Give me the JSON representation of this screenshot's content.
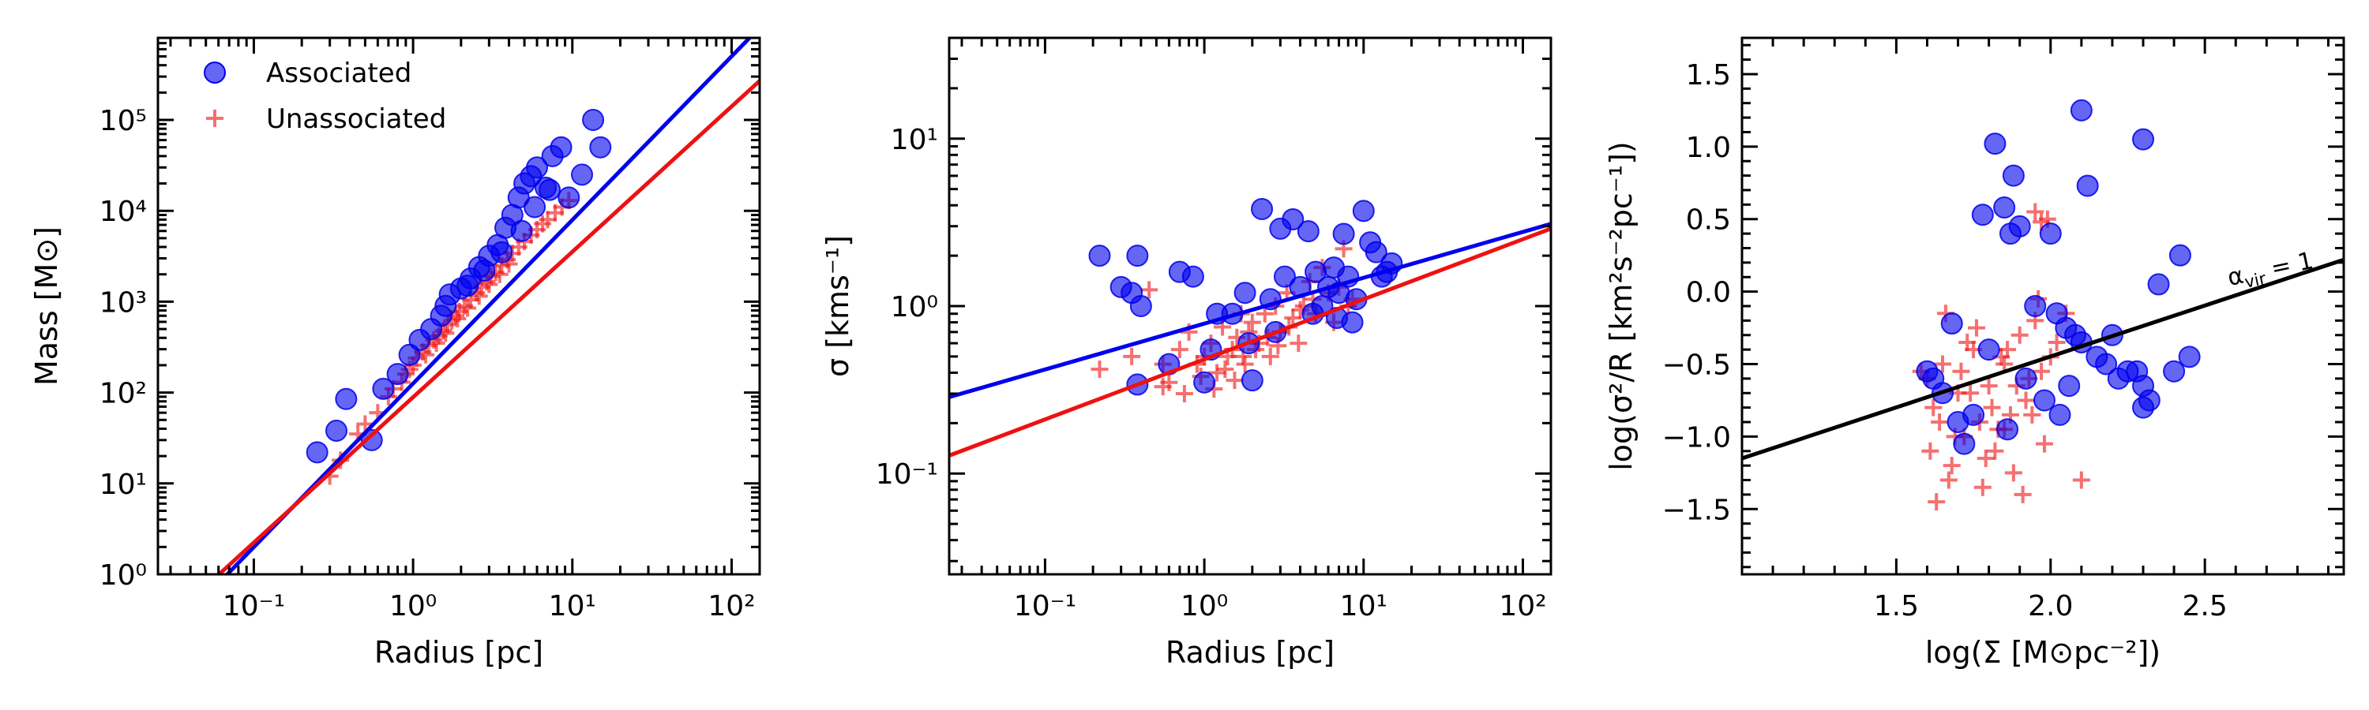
{
  "colors": {
    "associated": "#0000ee",
    "unassociated": "#ee1111",
    "fit_black": "#000000"
  },
  "chart_data": [
    {
      "type": "scatter",
      "xscale": "log",
      "yscale": "log",
      "xlabel": "Radius [pc]",
      "ylabel": "Mass [M⊙]",
      "xlim": [
        0.025,
        150
      ],
      "ylim": [
        1,
        800000
      ],
      "xticks": [
        {
          "value": 0.1,
          "label": "10⁻¹"
        },
        {
          "value": 1,
          "label": "10⁰"
        },
        {
          "value": 10,
          "label": "10¹"
        },
        {
          "value": 100,
          "label": "10²"
        }
      ],
      "yticks": [
        {
          "value": 1,
          "label": "10⁰"
        },
        {
          "value": 10,
          "label": "10¹"
        },
        {
          "value": 100,
          "label": "10²"
        },
        {
          "value": 1000,
          "label": "10³"
        },
        {
          "value": 10000,
          "label": "10⁴"
        },
        {
          "value": 100000,
          "label": "10⁵"
        }
      ],
      "legend": {
        "position": "top-left",
        "entries": [
          "Associated",
          "Unassociated"
        ]
      },
      "series": [
        {
          "name": "Associated",
          "marker": "circle",
          "x": [
            0.25,
            0.33,
            0.38,
            0.55,
            0.65,
            0.8,
            0.95,
            1.1,
            1.3,
            1.5,
            1.7,
            2.0,
            2.3,
            2.6,
            3.0,
            3.4,
            3.8,
            4.2,
            4.6,
            5.0,
            5.5,
            6.0,
            6.8,
            7.5,
            8.5,
            9.5,
            11.5,
            13.5,
            15.0,
            1.6,
            2.2,
            2.8,
            3.6,
            4.8,
            5.8,
            7.2
          ],
          "y": [
            22,
            38,
            85,
            30,
            110,
            160,
            260,
            380,
            500,
            700,
            1200,
            1400,
            1800,
            2400,
            3200,
            4200,
            6500,
            9000,
            14000,
            20000,
            24000,
            30000,
            18000,
            40000,
            50000,
            14000,
            25000,
            100000,
            50000,
            900,
            1500,
            2200,
            3500,
            6000,
            11000,
            17000
          ]
        },
        {
          "name": "Unassociated",
          "marker": "plus",
          "x": [
            0.3,
            0.35,
            0.45,
            0.5,
            0.6,
            0.7,
            0.75,
            0.85,
            0.9,
            1.0,
            1.05,
            1.15,
            1.25,
            1.35,
            1.45,
            1.55,
            1.65,
            1.75,
            1.85,
            1.95,
            2.1,
            2.3,
            2.5,
            2.7,
            2.9,
            3.1,
            3.3,
            3.6,
            3.9,
            4.2,
            4.6,
            5.0,
            5.5,
            6.0,
            6.5,
            7.0,
            7.8,
            8.6,
            9.5,
            0.95,
            1.2,
            1.4,
            1.6,
            1.9,
            2.2,
            2.6,
            3.0,
            3.5,
            4.0
          ],
          "y": [
            12,
            18,
            35,
            45,
            60,
            90,
            110,
            130,
            160,
            200,
            240,
            280,
            330,
            380,
            420,
            480,
            560,
            620,
            700,
            780,
            900,
            1050,
            1250,
            1450,
            1650,
            1900,
            2100,
            2500,
            2900,
            3400,
            4000,
            4600,
            5400,
            6200,
            7200,
            8000,
            9500,
            11000,
            13000,
            180,
            260,
            350,
            450,
            650,
            850,
            1150,
            1550,
            2000,
            2600
          ]
        }
      ],
      "fit_lines": [
        {
          "name": "Associated fit",
          "color": "associated",
          "x": [
            0.01,
            1000
          ],
          "y": [
            0.0316,
            31600000
          ]
        },
        {
          "name": "Unassociated fit",
          "color": "unassociated",
          "x": [
            0.01,
            1000
          ],
          "y": [
            0.0562,
            5600000
          ]
        }
      ]
    },
    {
      "type": "scatter",
      "xscale": "log",
      "yscale": "log",
      "xlabel": "Radius [pc]",
      "ylabel": "σ [kms⁻¹]",
      "xlim": [
        0.025,
        150
      ],
      "ylim": [
        0.025,
        40
      ],
      "xticks": [
        {
          "value": 0.1,
          "label": "10⁻¹"
        },
        {
          "value": 1,
          "label": "10⁰"
        },
        {
          "value": 10,
          "label": "10¹"
        },
        {
          "value": 100,
          "label": "10²"
        }
      ],
      "yticks": [
        {
          "value": 0.1,
          "label": "10⁻¹"
        },
        {
          "value": 1,
          "label": "10⁰"
        },
        {
          "value": 10,
          "label": "10¹"
        }
      ],
      "series": [
        {
          "name": "Associated",
          "marker": "circle",
          "x": [
            0.22,
            0.3,
            0.35,
            0.38,
            0.4,
            0.38,
            0.6,
            0.7,
            0.85,
            1.0,
            1.2,
            1.5,
            1.8,
            2.0,
            2.3,
            2.6,
            3.0,
            3.2,
            3.6,
            4.0,
            4.5,
            5.0,
            5.5,
            6.0,
            6.5,
            7.0,
            7.5,
            8.0,
            8.5,
            9.0,
            10.0,
            11.0,
            12.0,
            13.0,
            14.0,
            15.0,
            1.1,
            1.9,
            2.8,
            4.8,
            6.8
          ],
          "y": [
            2.0,
            1.3,
            1.2,
            2.0,
            1.0,
            0.34,
            0.45,
            1.6,
            1.5,
            0.35,
            0.9,
            0.9,
            1.2,
            0.36,
            3.8,
            1.1,
            2.9,
            1.5,
            3.3,
            1.3,
            2.8,
            1.6,
            1.0,
            1.3,
            1.7,
            1.2,
            2.7,
            1.5,
            0.8,
            1.1,
            3.7,
            2.4,
            2.1,
            1.5,
            1.6,
            1.8,
            0.55,
            0.6,
            0.7,
            0.9,
            0.85
          ]
        },
        {
          "name": "Unassociated",
          "marker": "plus",
          "x": [
            0.22,
            0.35,
            0.45,
            0.55,
            0.6,
            0.7,
            0.8,
            0.9,
            1.0,
            1.1,
            1.2,
            1.3,
            1.4,
            1.5,
            1.6,
            1.7,
            1.8,
            1.9,
            2.0,
            2.2,
            2.4,
            2.6,
            2.8,
            3.0,
            3.3,
            3.6,
            3.9,
            4.2,
            4.6,
            5.0,
            5.5,
            6.0,
            6.5,
            7.0,
            7.5,
            8.0,
            8.5,
            0.75,
            0.95,
            1.15,
            1.35,
            1.55,
            1.75,
            2.1,
            2.5,
            2.9,
            3.4,
            4.0,
            4.8,
            0.55
          ],
          "y": [
            0.42,
            0.5,
            1.25,
            0.45,
            0.35,
            0.55,
            0.7,
            0.45,
            0.5,
            0.6,
            0.4,
            0.75,
            0.5,
            0.55,
            0.65,
            0.9,
            0.45,
            0.7,
            0.8,
            0.6,
            0.9,
            0.5,
            1.0,
            0.7,
            1.2,
            0.85,
            0.6,
            1.0,
            1.4,
            0.9,
            1.7,
            1.2,
            0.8,
            1.3,
            2.2,
            1.0,
            1.1,
            0.3,
            0.38,
            0.32,
            0.42,
            0.36,
            0.5,
            0.55,
            0.65,
            0.58,
            0.75,
            0.95,
            1.1,
            0.33
          ]
        }
      ],
      "fit_lines": [
        {
          "name": "Associated fit",
          "color": "associated",
          "x": [
            0.025,
            150
          ],
          "y": [
            0.286,
            3.1
          ]
        },
        {
          "name": "Unassociated fit",
          "color": "unassociated",
          "x": [
            0.025,
            150
          ],
          "y": [
            0.128,
            2.9
          ]
        }
      ]
    },
    {
      "type": "scatter",
      "xscale": "linear",
      "yscale": "linear",
      "xlabel": "log(Σ [M⊙pc⁻²])",
      "ylabel": "log(σ²/R [km²s⁻²pc⁻¹])",
      "xlim": [
        1.0,
        2.95
      ],
      "ylim": [
        -1.95,
        1.75
      ],
      "xticks": [
        {
          "value": 1.5,
          "label": "1.5"
        },
        {
          "value": 2.0,
          "label": "2.0"
        },
        {
          "value": 2.5,
          "label": "2.5"
        }
      ],
      "yticks": [
        {
          "value": -1.5,
          "label": "−1.5"
        },
        {
          "value": -1.0,
          "label": "−1.0"
        },
        {
          "value": -0.5,
          "label": "−0.5"
        },
        {
          "value": 0.0,
          "label": "0.0"
        },
        {
          "value": 0.5,
          "label": "0.5"
        },
        {
          "value": 1.0,
          "label": "1.0"
        },
        {
          "value": 1.5,
          "label": "1.5"
        }
      ],
      "annotation": "α",
      "annotation_sub": "vir",
      "annotation_suffix": " = 1",
      "series": [
        {
          "name": "Associated",
          "marker": "circle",
          "x": [
            2.1,
            2.3,
            1.82,
            1.88,
            1.87,
            2.12,
            1.78,
            1.85,
            1.9,
            2.0,
            1.95,
            2.02,
            2.05,
            2.08,
            2.1,
            2.15,
            2.18,
            2.2,
            2.22,
            2.25,
            2.3,
            2.32,
            2.35,
            2.42,
            2.45,
            1.6,
            1.62,
            1.65,
            1.7,
            1.72,
            1.75,
            1.8,
            1.92,
            1.98,
            2.03,
            2.28,
            2.3,
            2.4,
            1.68,
            1.86,
            2.06
          ],
          "y": [
            1.25,
            1.05,
            1.02,
            0.8,
            0.4,
            0.73,
            0.53,
            0.58,
            0.45,
            0.4,
            -0.1,
            -0.15,
            -0.25,
            -0.3,
            -0.35,
            -0.45,
            -0.5,
            -0.3,
            -0.6,
            -0.55,
            -0.65,
            -0.75,
            0.05,
            0.25,
            -0.45,
            -0.55,
            -0.6,
            -0.7,
            -0.9,
            -1.05,
            -0.85,
            -0.4,
            -0.6,
            -0.75,
            -0.85,
            -0.55,
            -0.8,
            -0.55,
            -0.22,
            -0.95,
            -0.65
          ]
        },
        {
          "name": "Unassociated",
          "marker": "plus",
          "x": [
            1.6,
            1.62,
            1.65,
            1.68,
            1.7,
            1.72,
            1.75,
            1.77,
            1.8,
            1.82,
            1.85,
            1.87,
            1.9,
            1.92,
            1.95,
            1.97,
            2.0,
            1.63,
            1.67,
            1.73,
            1.78,
            1.83,
            1.88,
            1.93,
            1.98,
            1.66,
            1.71,
            1.76,
            1.81,
            1.86,
            1.91,
            1.96,
            2.1,
            1.95,
            1.97,
            1.99,
            2.05,
            1.69,
            1.74,
            1.79,
            1.84,
            1.64,
            1.58,
            1.61,
            1.89,
            1.94,
            2.02,
            1.85
          ],
          "y": [
            -0.6,
            -0.8,
            -0.5,
            -1.2,
            -0.7,
            -1.0,
            -0.4,
            -0.9,
            -0.65,
            -1.1,
            -0.5,
            -0.85,
            -0.3,
            -0.75,
            -0.2,
            -0.55,
            -0.45,
            -1.45,
            -1.3,
            -0.35,
            -1.35,
            -0.95,
            -1.25,
            -0.6,
            -1.05,
            -0.15,
            -0.55,
            -0.25,
            -0.8,
            -0.4,
            -1.4,
            -0.05,
            -1.3,
            0.55,
            0.48,
            0.5,
            -0.15,
            -1.0,
            -0.7,
            -1.15,
            -0.45,
            -0.9,
            -0.55,
            -1.1,
            -0.65,
            -0.85,
            -0.35,
            -0.95
          ]
        }
      ],
      "fit_lines": [
        {
          "name": "virial line",
          "color": "fit_black",
          "x": [
            1.0,
            2.95
          ],
          "y": [
            -1.15,
            0.22
          ]
        }
      ]
    }
  ]
}
